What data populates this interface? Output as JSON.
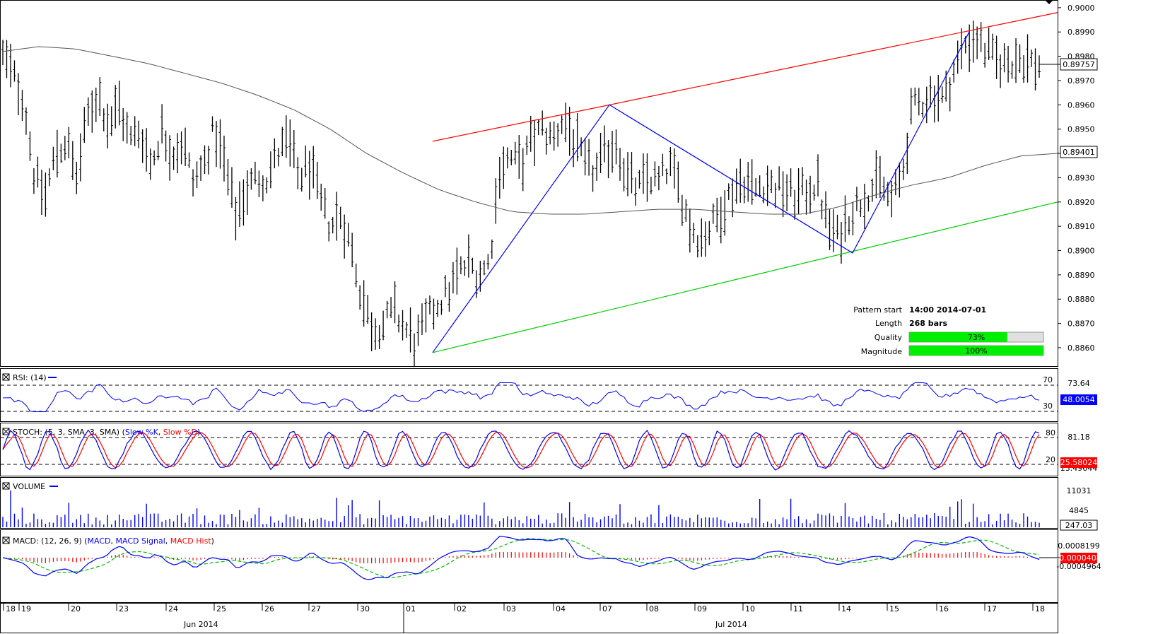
{
  "chart_data": {
    "type": "ohlc",
    "instrument_note": "",
    "price_axis": {
      "range": [
        0.8853,
        0.9002
      ],
      "ticks": [
        "0.9000",
        "0.8990",
        "0.8980",
        "0.8970",
        "0.8960",
        "0.8950",
        "0.8940",
        "0.8930",
        "0.8920",
        "0.8910",
        "0.8900",
        "0.8890",
        "0.8880",
        "0.8870",
        "0.8860"
      ],
      "current_price_label": "0.89757",
      "current_price": 0.89757,
      "sma_label": "0.89401",
      "sma_value": 0.89401
    },
    "date_axis": {
      "day_labels": [
        "18",
        "19",
        "20",
        "23",
        "24",
        "25",
        "26",
        "27",
        "30",
        "01",
        "02",
        "03",
        "04",
        "07",
        "08",
        "09",
        "10",
        "11",
        "14",
        "15",
        "16",
        "17",
        "18"
      ],
      "month_labels": [
        "Jun 2014",
        "Jul 2014"
      ]
    },
    "price_series_shape": [
      0.898,
      0.8972,
      0.8962,
      0.893,
      0.8922,
      0.894,
      0.8945,
      0.893,
      0.8955,
      0.8965,
      0.8952,
      0.896,
      0.8945,
      0.895,
      0.8935,
      0.895,
      0.894,
      0.8945,
      0.8928,
      0.8935,
      0.895,
      0.8935,
      0.8915,
      0.8925,
      0.893,
      0.893,
      0.894,
      0.8945,
      0.893,
      0.8935,
      0.892,
      0.891,
      0.8915,
      0.89,
      0.888,
      0.8868,
      0.887,
      0.8875,
      0.8868,
      0.8862,
      0.887,
      0.8878,
      0.8882,
      0.889,
      0.8895,
      0.889,
      0.8895,
      0.8935,
      0.8938,
      0.8935,
      0.8945,
      0.895,
      0.8945,
      0.8955,
      0.8945,
      0.8935,
      0.8932,
      0.894,
      0.8945,
      0.893,
      0.8925,
      0.893,
      0.8928,
      0.8935,
      0.8925,
      0.891,
      0.8905,
      0.891,
      0.8918,
      0.8925,
      0.893,
      0.8925,
      0.8928,
      0.8926,
      0.8925,
      0.8922,
      0.8925,
      0.8928,
      0.891,
      0.8905,
      0.8915,
      0.892,
      0.8925,
      0.8928,
      0.892,
      0.893,
      0.8958,
      0.8962,
      0.8965,
      0.8962,
      0.8975,
      0.8985,
      0.8988,
      0.8982,
      0.8978,
      0.8977,
      0.898,
      0.8978,
      0.8976
    ],
    "sma_shape": [
      0.8982,
      0.8984,
      0.8983,
      0.898,
      0.8977,
      0.8973,
      0.8969,
      0.8964,
      0.8958,
      0.895,
      0.894,
      0.8932,
      0.8925,
      0.892,
      0.8916,
      0.8915,
      0.8915,
      0.8916,
      0.8917,
      0.8917,
      0.8916,
      0.8915,
      0.8915,
      0.8918,
      0.8923,
      0.8927,
      0.893,
      0.8935,
      0.8939,
      0.894
    ],
    "channel": {
      "resistance": {
        "color": "#ff0000",
        "start": {
          "date": "07-01",
          "price": 0.8945
        },
        "end": {
          "date": "07-18",
          "price": 0.8998
        }
      },
      "support": {
        "color": "#00cc00",
        "start": {
          "date": "07-01",
          "price": 0.8858
        },
        "end": {
          "date": "07-18",
          "price": 0.892
        }
      }
    },
    "zigzag": {
      "color": "#0000ff",
      "points": [
        0.8858,
        0.896,
        0.8899,
        0.899
      ]
    },
    "pattern_info": {
      "rows": [
        {
          "label": "Pattern start",
          "value": "14:00 2014-07-01"
        },
        {
          "label": "Length",
          "value": "268 bars"
        }
      ],
      "quality": {
        "label": "Quality",
        "percent": 73,
        "text": "73%"
      },
      "magnitude": {
        "label": "Magnitude",
        "percent": 100,
        "text": "100%"
      }
    },
    "rsi": {
      "title": "RSI: (14)",
      "levels": [
        {
          "label": "70"
        },
        {
          "label": "30"
        }
      ],
      "scale_labels": [
        "73.64"
      ],
      "current_label": "48.0054"
    },
    "stoch": {
      "title_prefix": "STOCH: (5, 3, SMA, 3, SMA)",
      "k_name": "Slow %K",
      "d_name": "Slow %D",
      "levels": [
        {
          "label": "80"
        },
        {
          "label": "20"
        }
      ],
      "scale_labels": [
        "81.18"
      ],
      "current_label": "25.58024",
      "second_label": "13.49644"
    },
    "volume": {
      "title": "VOLUME",
      "scale_labels": [
        "11031",
        "4845"
      ],
      "current_label": "247.03"
    },
    "macd": {
      "title_prefix": "MACD: (12, 26, 9)",
      "macd_name": "MACD",
      "signal_name": "MACD Signal",
      "hist_name": "MACD Hist",
      "scale_labels": [
        "0.0008199",
        "-0.0004964"
      ],
      "current_label": "-0.0000408"
    },
    "colors": {
      "price_bars": "#000000",
      "sma": "#555555",
      "rsi": "#0000ff",
      "stoch_k": "#0000ff",
      "stoch_d": "#ff0000",
      "volume": "#0000ff",
      "macd": "#0000ff",
      "macd_signal": "#00bb00",
      "macd_hist": "#ff0000",
      "quality_fill": "#00ee00",
      "current_price_box": "#ffffff",
      "rsi_box": "#0000ff",
      "stoch_box": "#ff0000",
      "macd_box": "#ff0000"
    }
  }
}
